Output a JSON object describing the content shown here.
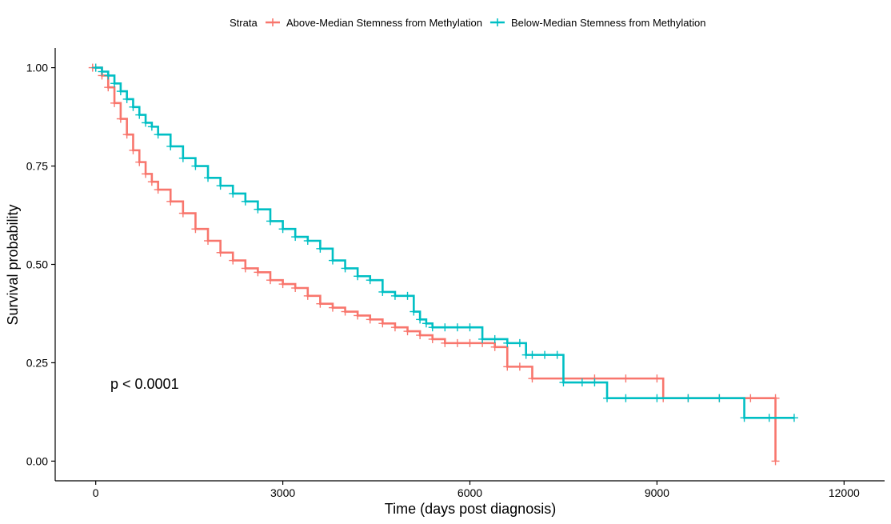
{
  "chart_data": {
    "type": "line",
    "subtype": "kaplan-meier",
    "xlabel": "Time (days post diagnosis)",
    "ylabel": "Survival probability",
    "xlim": [
      -650,
      12650
    ],
    "ylim": [
      -0.05,
      1.05
    ],
    "xticks": [
      0,
      3000,
      6000,
      9000,
      12000
    ],
    "xtick_labels": [
      "0",
      "3000",
      "6000",
      "9000",
      "12000"
    ],
    "yticks": [
      0,
      0.25,
      0.5,
      0.75,
      1.0
    ],
    "ytick_labels": [
      "0.00",
      "0.25",
      "0.50",
      "0.75",
      "1.00"
    ],
    "grid": false,
    "legend": {
      "position": "top",
      "title": "Strata"
    },
    "annotation": "p < 0.0001",
    "series": [
      {
        "name": "Above-Median Stemness from Methylation",
        "color": "#F8766D",
        "x": [
          -50,
          0,
          100,
          200,
          300,
          400,
          500,
          600,
          700,
          800,
          900,
          1000,
          1200,
          1400,
          1600,
          1800,
          2000,
          2200,
          2400,
          2600,
          2800,
          3000,
          3200,
          3400,
          3600,
          3800,
          4000,
          4200,
          4400,
          4600,
          4800,
          5000,
          5200,
          5400,
          5600,
          5800,
          6000,
          6200,
          6400,
          6600,
          6800,
          7000,
          7500,
          8000,
          8500,
          9000,
          9100,
          9500,
          10000,
          10500,
          10900,
          10900
        ],
        "y": [
          1.0,
          1.0,
          0.98,
          0.95,
          0.91,
          0.87,
          0.83,
          0.79,
          0.76,
          0.73,
          0.71,
          0.69,
          0.66,
          0.63,
          0.59,
          0.56,
          0.53,
          0.51,
          0.49,
          0.48,
          0.46,
          0.45,
          0.44,
          0.42,
          0.4,
          0.39,
          0.38,
          0.37,
          0.36,
          0.35,
          0.34,
          0.33,
          0.32,
          0.31,
          0.3,
          0.3,
          0.3,
          0.3,
          0.29,
          0.24,
          0.24,
          0.21,
          0.21,
          0.21,
          0.21,
          0.21,
          0.16,
          0.16,
          0.16,
          0.16,
          0.16,
          0.0
        ]
      },
      {
        "name": "Below-Median Stemness from Methylation",
        "color": "#00BFC4",
        "x": [
          0,
          100,
          200,
          300,
          400,
          500,
          600,
          700,
          800,
          900,
          1000,
          1200,
          1400,
          1600,
          1800,
          2000,
          2200,
          2400,
          2600,
          2800,
          3000,
          3200,
          3400,
          3600,
          3800,
          4000,
          4200,
          4400,
          4600,
          4800,
          5000,
          5100,
          5200,
          5300,
          5400,
          5600,
          5800,
          6000,
          6200,
          6400,
          6600,
          6800,
          6900,
          7000,
          7200,
          7400,
          7500,
          7800,
          8000,
          8200,
          8500,
          9000,
          9500,
          10000,
          10400,
          10800,
          11200
        ],
        "y": [
          1.0,
          0.99,
          0.98,
          0.96,
          0.94,
          0.92,
          0.9,
          0.88,
          0.86,
          0.85,
          0.83,
          0.8,
          0.77,
          0.75,
          0.72,
          0.7,
          0.68,
          0.66,
          0.64,
          0.61,
          0.59,
          0.57,
          0.56,
          0.54,
          0.51,
          0.49,
          0.47,
          0.46,
          0.43,
          0.42,
          0.42,
          0.38,
          0.36,
          0.35,
          0.34,
          0.34,
          0.34,
          0.34,
          0.31,
          0.31,
          0.3,
          0.3,
          0.27,
          0.27,
          0.27,
          0.27,
          0.2,
          0.2,
          0.2,
          0.16,
          0.16,
          0.16,
          0.16,
          0.16,
          0.11,
          0.11,
          0.11
        ]
      }
    ]
  }
}
